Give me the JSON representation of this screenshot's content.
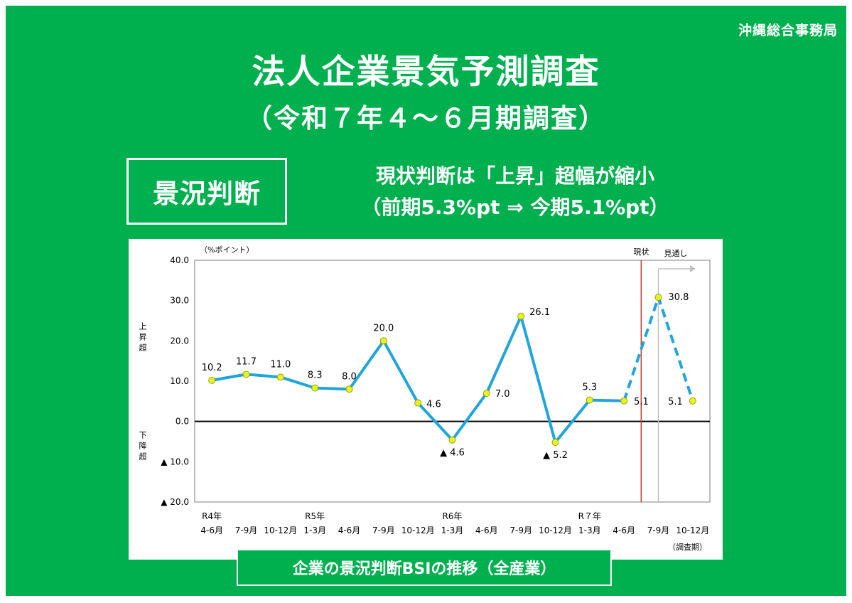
{
  "organization": "沖縄総合事務局",
  "title": "法人企業景気予測調査",
  "subtitle": "（令和７年４～６月期調査）",
  "badge": "景況判断",
  "headline": {
    "line1": "現状判断は「上昇」超幅が縮小",
    "line2": "（前期5.3%pt ⇒ 今期5.1%pt）"
  },
  "caption": "企業の景況判断BSIの推移（全産業）",
  "colors": {
    "background": "#00b04f",
    "series": "#1fa5dc",
    "marker": "#e8f51a",
    "current_line": "#c0392b",
    "arrow": "#bfbfbf"
  },
  "chart_data": {
    "type": "line",
    "unit_label": "（%ポイント）",
    "ylim": [
      -20,
      40
    ],
    "yticks": [
      40,
      30,
      20,
      10,
      0,
      -10,
      -20
    ],
    "ytick_labels": [
      "40.0",
      "30.0",
      "20.0",
      "10.0",
      "0.0",
      "▲ 10.0",
      "▲ 20.0"
    ],
    "y_side_labels": {
      "up": "上昇超",
      "down": "下降超"
    },
    "categories": [
      "4-6月",
      "7-9月",
      "10-12月",
      "1-3月",
      "4-6月",
      "7-9月",
      "10-12月",
      "1-3月",
      "4-6月",
      "7-9月",
      "10-12月",
      "1-3月",
      "4-6月",
      "7-9月",
      "10-12月"
    ],
    "year_labels": [
      {
        "index": 0,
        "label": "R4年"
      },
      {
        "index": 3,
        "label": "R5年"
      },
      {
        "index": 7,
        "label": "R6年"
      },
      {
        "index": 11,
        "label": "R７年"
      }
    ],
    "x_axis_note": "（調査期）",
    "values": [
      10.2,
      11.7,
      11.0,
      8.3,
      8.0,
      20.0,
      4.6,
      -4.6,
      7.0,
      26.1,
      -5.2,
      5.3,
      5.1,
      30.8,
      5.1
    ],
    "data_labels": [
      "10.2",
      "11.7",
      "11.0",
      "8.3",
      "8.0",
      "20.0",
      "4.6",
      "▲ 4.6",
      "7.0",
      "26.1",
      "▲ 5.2",
      "5.3",
      "5.1",
      "30.8",
      "5.1"
    ],
    "actual_until_index": 12,
    "current_label": "現状",
    "forecast_label": "見通し",
    "zero_line": true,
    "grid": false
  }
}
